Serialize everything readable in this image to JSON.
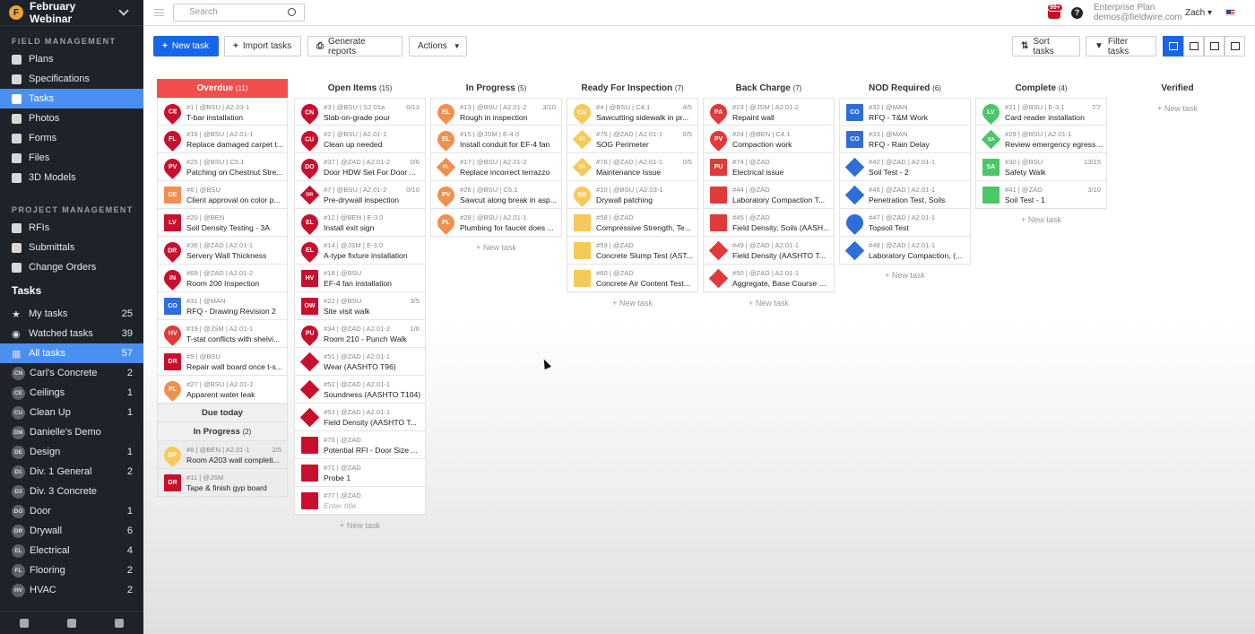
{
  "sidebar": {
    "project": "February Webinar",
    "sections": [
      {
        "title": "FIELD MANAGEMENT",
        "items": [
          {
            "label": "Plans",
            "icon": "plans-icon"
          },
          {
            "label": "Specifications",
            "icon": "specifications-icon"
          },
          {
            "label": "Tasks",
            "icon": "tasks-icon",
            "active": true
          },
          {
            "label": "Photos",
            "icon": "photos-icon"
          },
          {
            "label": "Forms",
            "icon": "forms-icon"
          },
          {
            "label": "Files",
            "icon": "files-icon"
          },
          {
            "label": "3D Models",
            "icon": "cube-icon"
          }
        ]
      },
      {
        "title": "PROJECT MANAGEMENT",
        "items": [
          {
            "label": "RFIs",
            "icon": "rfis-icon"
          },
          {
            "label": "Submittals",
            "icon": "submittals-icon"
          },
          {
            "label": "Change Orders",
            "icon": "change-orders-icon"
          }
        ]
      }
    ],
    "tasks_heading": "Tasks",
    "filters": [
      {
        "label": "My tasks",
        "icon": "star-icon",
        "count": "25"
      },
      {
        "label": "Watched tasks",
        "icon": "eye-icon",
        "count": "39"
      },
      {
        "label": "All tasks",
        "icon": "grid-icon",
        "count": "57",
        "active": true
      },
      {
        "label": "Carl's Concrete",
        "avatar": "CN",
        "count": "2"
      },
      {
        "label": "Ceilings",
        "avatar": "CE",
        "count": "1"
      },
      {
        "label": "Clean Up",
        "avatar": "CU",
        "count": "1"
      },
      {
        "label": "Danielle's Demo",
        "avatar": "DM",
        "count": ""
      },
      {
        "label": "Design",
        "avatar": "DE",
        "count": "1"
      },
      {
        "label": "Div. 1 General",
        "avatar": "D1",
        "count": "2"
      },
      {
        "label": "Div. 3 Concrete",
        "avatar": "D3",
        "count": ""
      },
      {
        "label": "Door",
        "avatar": "DO",
        "count": "1"
      },
      {
        "label": "Drywall",
        "avatar": "DR",
        "count": "6"
      },
      {
        "label": "Electrical",
        "avatar": "EL",
        "count": "4"
      },
      {
        "label": "Flooring",
        "avatar": "FL",
        "count": "2"
      },
      {
        "label": "HVAC",
        "avatar": "HV",
        "count": "2"
      }
    ]
  },
  "topbar": {
    "search_placeholder": "Search",
    "notifications": "99+",
    "help": "?",
    "plan": "Enterprise Plan",
    "email": "demos@fieldwire.com",
    "user": "Zach"
  },
  "toolbar": {
    "new_task": "New task",
    "import_tasks": "Import tasks",
    "generate_reports": "Generate reports",
    "actions": "Actions",
    "sort_tasks": "Sort tasks",
    "filter_tasks": "Filter tasks"
  },
  "colors": {
    "red": "#c8102e",
    "pin_red": "#e03a3a",
    "orange": "#f09050",
    "yellow": "#f7c95a",
    "blue": "#2d6ed8",
    "green": "#4cc66a",
    "accent": "#1766e8"
  },
  "columns": [
    {
      "title": "Overdue",
      "count": "(11)",
      "new_task": "",
      "cards": [
        {
          "meta": "#1 | @BSU | A2.03-1",
          "title": "T-bar installation",
          "badge": "CE",
          "shape": "pin",
          "color": "red",
          "progress": ""
        },
        {
          "meta": "#16 | @BSU | A2.01-1",
          "title": "Replace damaged carpet t...",
          "badge": "FL",
          "shape": "pin",
          "color": "red",
          "progress": ""
        },
        {
          "meta": "#25 | @BSU | C5.1",
          "title": "Patching on Chestnut Stre...",
          "badge": "PV",
          "shape": "pin",
          "color": "red",
          "progress": ""
        },
        {
          "meta": "#6 | @BSU",
          "title": "Client approval on color p...",
          "badge": "DE",
          "shape": "sq",
          "color": "orange",
          "progress": ""
        },
        {
          "meta": "#20 | @BEN",
          "title": "Soil Density Testing - 3A",
          "badge": "LV",
          "shape": "sq",
          "color": "red",
          "progress": ""
        },
        {
          "meta": "#36 | @ZAD | A2.01-1",
          "title": "Servery Wall Thickness",
          "badge": "DR",
          "shape": "pin",
          "color": "red",
          "progress": ""
        },
        {
          "meta": "#69 | @ZAD | A2.01-2",
          "title": "Room 200 Inspection",
          "badge": "IN",
          "shape": "pin",
          "color": "red",
          "progress": ""
        },
        {
          "meta": "#31 | @MAN",
          "title": "RFQ - Drawing Revision 2",
          "badge": "CO",
          "shape": "sq",
          "color": "blue",
          "progress": ""
        },
        {
          "meta": "#19 | @JSM | A2.01-1",
          "title": "T-stat conflicts with shelvi...",
          "badge": "HV",
          "shape": "pin",
          "color": "pin_red",
          "progress": ""
        },
        {
          "meta": "#9 | @BSU",
          "title": "Repair wall board once t-s...",
          "badge": "DR",
          "shape": "sq",
          "color": "red",
          "progress": ""
        },
        {
          "meta": "#27 | @BSU | A2.01-2",
          "title": "Apparent water leak",
          "badge": "PL",
          "shape": "pin",
          "color": "orange",
          "progress": ""
        }
      ],
      "sub_groups": [
        {
          "title": "Due today",
          "count": "",
          "cards": []
        },
        {
          "title": "In Progress",
          "count": "(2)",
          "cards": [
            {
              "meta": "#8 | @BEN | A2.01-1",
              "title": "Room A203 wall completi...",
              "badge": "DR",
              "shape": "pin",
              "color": "yellow",
              "progress": "2/5"
            },
            {
              "meta": "#11 | @JSM",
              "title": "Tape & finish gyp board",
              "badge": "DR",
              "shape": "sq",
              "color": "red",
              "progress": ""
            }
          ]
        }
      ]
    },
    {
      "title": "Open Items",
      "count": "(15)",
      "new_task": "+ New task",
      "cards": [
        {
          "meta": "#3 | @BSU | S2.01a",
          "title": "Slab-on-grade pour",
          "badge": "CN",
          "shape": "pin",
          "color": "red",
          "progress": "0/13"
        },
        {
          "meta": "#2 | @BSU | A2.01-1",
          "title": "Clean up needed",
          "badge": "CU",
          "shape": "pin",
          "color": "red",
          "progress": ""
        },
        {
          "meta": "#37 | @ZAD | A2.01-2",
          "title": "Door HDW Set For Door ...",
          "badge": "DO",
          "shape": "pin",
          "color": "red",
          "progress": "0/6"
        },
        {
          "meta": "#7 | @BSU | A2.01-2",
          "title": "Pre-drywall inspection",
          "badge": "DR",
          "shape": "dia",
          "color": "red",
          "progress": "0/10"
        },
        {
          "meta": "#12 | @BEN | E-3.0",
          "title": "Install exit sign",
          "badge": "EL",
          "shape": "pin",
          "color": "red",
          "progress": ""
        },
        {
          "meta": "#14 | @JSM | E-3.0",
          "title": "A-type fixture installation",
          "badge": "EL",
          "shape": "pin",
          "color": "red",
          "progress": ""
        },
        {
          "meta": "#18 | @BSU",
          "title": "EF-4 fan installation",
          "badge": "HV",
          "shape": "sq",
          "color": "red",
          "progress": ""
        },
        {
          "meta": "#22 | @BSU",
          "title": "Site visit walk",
          "badge": "OW",
          "shape": "sq",
          "color": "red",
          "progress": "3/5"
        },
        {
          "meta": "#34 | @ZAD | A2.01-2",
          "title": "Room 210 - Punch Walk",
          "badge": "PU",
          "shape": "pin",
          "color": "red",
          "progress": "1/6"
        },
        {
          "meta": "#51 | @ZAD | A2.01-1",
          "title": "Wear (AASHTO T96)",
          "badge": "",
          "shape": "dia",
          "color": "red",
          "progress": ""
        },
        {
          "meta": "#52 | @ZAD | A2.01-1",
          "title": "Soundness (AASHTO T104)",
          "badge": "",
          "shape": "dia",
          "color": "red",
          "progress": ""
        },
        {
          "meta": "#53 | @ZAD | A2.01-1",
          "title": "Field Density (AASHTO T...",
          "badge": "",
          "shape": "dia",
          "color": "red",
          "progress": ""
        },
        {
          "meta": "#70 | @ZAD",
          "title": "Potential RFI - Door Size ...",
          "badge": "",
          "shape": "sq",
          "color": "red",
          "progress": ""
        },
        {
          "meta": "#71 | @ZAD",
          "title": "Probe 1",
          "badge": "",
          "shape": "sq",
          "color": "red",
          "progress": ""
        },
        {
          "meta": "#77 | @ZAD",
          "title": "Enter title",
          "badge": "",
          "shape": "sq",
          "color": "red",
          "progress": "",
          "placeholder": true
        }
      ]
    },
    {
      "title": "In Progress",
      "count": "(5)",
      "new_task": "+ New task",
      "cards": [
        {
          "meta": "#13 | @BSU | A2.01-2",
          "title": "Rough in inspection",
          "badge": "EL",
          "shape": "pin",
          "color": "orange",
          "progress": "3/10"
        },
        {
          "meta": "#15 | @JSM | E-4.0",
          "title": "Install conduit for EF-4 fan",
          "badge": "EL",
          "shape": "pin",
          "color": "orange",
          "progress": ""
        },
        {
          "meta": "#17 | @BSU | A2.01-2",
          "title": "Replace incorrect terrazzo",
          "badge": "FL",
          "shape": "dia",
          "color": "orange",
          "progress": ""
        },
        {
          "meta": "#26 | @BSU | C5.1",
          "title": "Sawcut along break in asp...",
          "badge": "PV",
          "shape": "pin",
          "color": "orange",
          "progress": ""
        },
        {
          "meta": "#28 | @BSU | A2.01-1",
          "title": "Plumbing for faucet does ...",
          "badge": "PL",
          "shape": "pin",
          "color": "orange",
          "progress": ""
        }
      ]
    },
    {
      "title": "Ready For Inspection",
      "count": "(7)",
      "new_task": "+ New task",
      "cards": [
        {
          "meta": "#4 | @BSU | C4.1",
          "title": "Sawcutting sidewalk in pr...",
          "badge": "CN",
          "shape": "pin",
          "color": "yellow",
          "progress": "4/5"
        },
        {
          "meta": "#75 | @ZAD | A2.01-1",
          "title": "SOG Perimeter",
          "badge": "D1",
          "shape": "dia",
          "color": "yellow",
          "progress": "0/5"
        },
        {
          "meta": "#76 | @ZAD | A2.01-1",
          "title": "Maintenance Issue",
          "badge": "D1",
          "shape": "dia",
          "color": "yellow",
          "progress": "0/5"
        },
        {
          "meta": "#10 | @BSU | A2.03-1",
          "title": "Drywall patching",
          "badge": "DR",
          "shape": "pin",
          "color": "yellow",
          "progress": ""
        },
        {
          "meta": "#58 | @ZAD",
          "title": "Compressive Strength, Te...",
          "badge": "",
          "shape": "sq",
          "color": "yellow",
          "progress": ""
        },
        {
          "meta": "#59 | @ZAD",
          "title": "Concrete Slump Test (AST...",
          "badge": "",
          "shape": "sq",
          "color": "yellow",
          "progress": ""
        },
        {
          "meta": "#60 | @ZAD",
          "title": "Concrete Air Content Test...",
          "badge": "",
          "shape": "sq",
          "color": "yellow",
          "progress": ""
        }
      ]
    },
    {
      "title": "Back Charge",
      "count": "(7)",
      "new_task": "+ New task",
      "cards": [
        {
          "meta": "#23 | @JSM | A2.01-2",
          "title": "Repaint wall",
          "badge": "PA",
          "shape": "pin",
          "color": "pin_red",
          "progress": ""
        },
        {
          "meta": "#24 | @BEN | C4.1",
          "title": "Compaction work",
          "badge": "PV",
          "shape": "pin",
          "color": "pin_red",
          "progress": ""
        },
        {
          "meta": "#74 | @ZAD",
          "title": "Electrical issue",
          "badge": "PU",
          "shape": "sq",
          "color": "pin_red",
          "progress": ""
        },
        {
          "meta": "#44 | @ZAD",
          "title": "Laboratory Compaction T...",
          "badge": "",
          "shape": "sq",
          "color": "pin_red",
          "progress": ""
        },
        {
          "meta": "#45 | @ZAD",
          "title": "Field Density, Soils (AASH...",
          "badge": "",
          "shape": "sq",
          "color": "pin_red",
          "progress": ""
        },
        {
          "meta": "#49 | @ZAD | A2.01-1",
          "title": "Field Density (AASHTO T...",
          "badge": "",
          "shape": "dia",
          "color": "pin_red",
          "progress": ""
        },
        {
          "meta": "#50 | @ZAD | A2.01-1",
          "title": "Aggregate, Base Course G...",
          "badge": "",
          "shape": "dia",
          "color": "pin_red",
          "progress": ""
        }
      ]
    },
    {
      "title": "NOD Required",
      "count": "(6)",
      "new_task": "+ New task",
      "cards": [
        {
          "meta": "#32 | @MAN",
          "title": "RFQ - T&M Work",
          "badge": "CO",
          "shape": "sq",
          "color": "blue",
          "progress": ""
        },
        {
          "meta": "#33 | @MAN",
          "title": "RFQ - Rain Delay",
          "badge": "CO",
          "shape": "sq",
          "color": "blue",
          "progress": ""
        },
        {
          "meta": "#42 | @ZAD | A2.01-1",
          "title": "Soil Test - 2",
          "badge": "",
          "shape": "dia",
          "color": "blue",
          "progress": ""
        },
        {
          "meta": "#46 | @ZAD | A2.01-1",
          "title": "Penetration Test, Soils",
          "badge": "",
          "shape": "dia",
          "color": "blue",
          "progress": ""
        },
        {
          "meta": "#47 | @ZAD | A2.01-1",
          "title": "Topsoil Test",
          "badge": "",
          "shape": "pin",
          "color": "blue",
          "progress": ""
        },
        {
          "meta": "#48 | @ZAD | A2.01-1",
          "title": "Laboratory Compaction, (...",
          "badge": "",
          "shape": "dia",
          "color": "blue",
          "progress": ""
        }
      ]
    },
    {
      "title": "Complete",
      "count": "(4)",
      "new_task": "+ New task",
      "cards": [
        {
          "meta": "#21 | @BSU | E-3.1",
          "title": "Card reader installation",
          "badge": "LV",
          "shape": "pin",
          "color": "green",
          "progress": "7/7"
        },
        {
          "meta": "#29 | @BSU | A2.01-1",
          "title": "Review emergency egress ...",
          "badge": "SA",
          "shape": "dia",
          "color": "green",
          "progress": ""
        },
        {
          "meta": "#30 | @BSU",
          "title": "Safety Walk",
          "badge": "SA",
          "shape": "sq",
          "color": "green",
          "progress": "13/15"
        },
        {
          "meta": "#41 | @ZAD",
          "title": "Soil Test - 1",
          "badge": "",
          "shape": "sq",
          "color": "green",
          "progress": "3/10"
        }
      ]
    },
    {
      "title": "Verified",
      "count": "",
      "new_task": "+ New task",
      "cards": []
    }
  ]
}
